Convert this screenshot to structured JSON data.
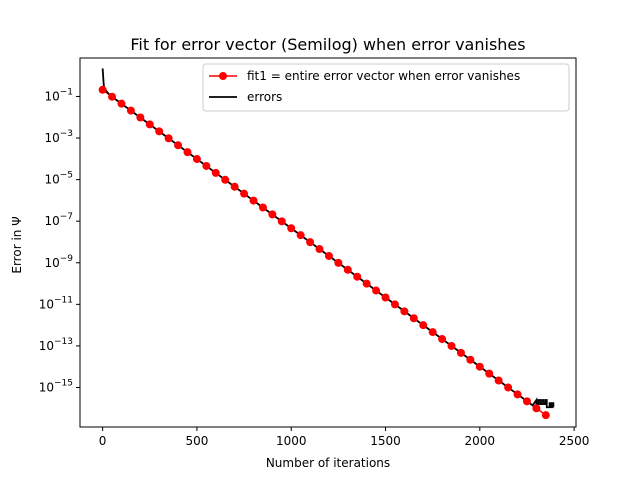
{
  "chart_data": {
    "type": "line",
    "title": "Fit for error vector (Semilog) when error vanishes",
    "xlabel": "Number of iterations",
    "ylabel": "Error in Ψ",
    "yscale": "log",
    "xlim": [
      -120,
      2510
    ],
    "ylim_log10": [
      -16.9,
      0.85
    ],
    "x_ticks": [
      0,
      500,
      1000,
      1500,
      2000,
      2500
    ],
    "x_tick_labels": [
      "0",
      "500",
      "1000",
      "1500",
      "2000",
      "2500"
    ],
    "y_ticks_log10": [
      -1,
      -3,
      -5,
      -7,
      -9,
      -11,
      -13,
      -15
    ],
    "y_tick_labels": [
      {
        "base": "10",
        "exp": "−1"
      },
      {
        "base": "10",
        "exp": "−3"
      },
      {
        "base": "10",
        "exp": "−5"
      },
      {
        "base": "10",
        "exp": "−7"
      },
      {
        "base": "10",
        "exp": "−9"
      },
      {
        "base": "10",
        "exp": "−11"
      },
      {
        "base": "10",
        "exp": "−13"
      },
      {
        "base": "10",
        "exp": "−15"
      }
    ],
    "legend_position": "top-right",
    "series": [
      {
        "name": "fit1 = entire error vector when error vanishes",
        "color": "#ff0000",
        "marker": "circle",
        "kind": "fit-markers",
        "x_start": 0,
        "x_step": 50,
        "count": 48,
        "y_start_log10": -0.68,
        "y_slope_per_iteration_log10": -0.00666
      },
      {
        "name": "errors",
        "color": "#000000",
        "kind": "line",
        "points_log10": [
          [
            0,
            0.35
          ],
          [
            2,
            0.1
          ],
          [
            4,
            -0.2
          ],
          [
            6,
            -0.45
          ],
          [
            10,
            -0.62
          ],
          [
            20,
            -0.75
          ],
          [
            40,
            -0.95
          ],
          [
            2280,
            -15.86
          ],
          [
            2300,
            -15.6
          ],
          [
            2300,
            -15.8
          ],
          [
            2310,
            -15.8
          ],
          [
            2310,
            -15.6
          ],
          [
            2320,
            -15.6
          ],
          [
            2320,
            -15.8
          ],
          [
            2330,
            -15.8
          ],
          [
            2330,
            -15.6
          ],
          [
            2340,
            -15.6
          ],
          [
            2340,
            -15.8
          ],
          [
            2350,
            -15.8
          ],
          [
            2350,
            -15.6
          ],
          [
            2355,
            -15.6
          ],
          [
            2355,
            -15.95
          ],
          [
            2370,
            -15.95
          ],
          [
            2370,
            -15.75
          ],
          [
            2378,
            -15.75
          ],
          [
            2378,
            -15.95
          ],
          [
            2385,
            -15.95
          ],
          [
            2385,
            -15.75
          ],
          [
            2390,
            -15.75
          ],
          [
            2390,
            -15.95
          ]
        ]
      }
    ]
  }
}
